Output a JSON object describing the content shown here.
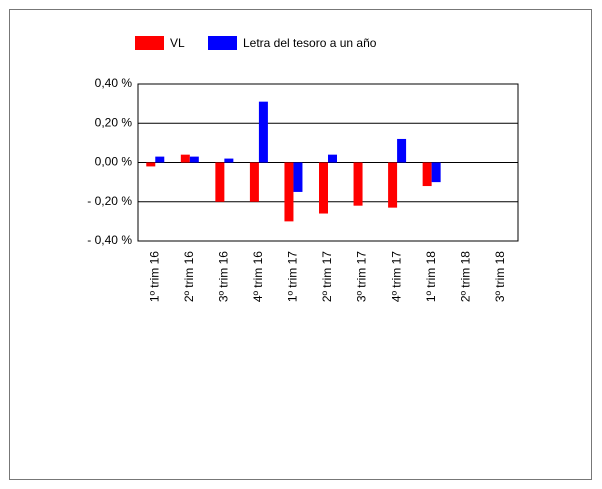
{
  "chart_data": {
    "type": "bar",
    "categories": [
      "1º trim 16",
      "2º trim 16",
      "3º trim 16",
      "4º trim 16",
      "1º trim 17",
      "2º trim 17",
      "3º trim 17",
      "4º trim 17",
      "1º trim 18",
      "2º trim 18",
      "3º trim 18"
    ],
    "series": [
      {
        "name": "VL",
        "color": "#ff0000",
        "values": [
          -0.02,
          0.04,
          -0.2,
          -0.2,
          -0.3,
          -0.26,
          -0.22,
          -0.23,
          -0.12,
          null,
          null
        ]
      },
      {
        "name": "Letra del tesoro a un año",
        "color": "#0000ff",
        "values": [
          0.03,
          0.03,
          0.02,
          0.31,
          -0.15,
          0.04,
          null,
          0.12,
          -0.1,
          null,
          null
        ]
      }
    ],
    "ylim": [
      -0.4,
      0.4
    ],
    "yticks": [
      {
        "value": 0.4,
        "label": "0,40 %"
      },
      {
        "value": 0.2,
        "label": "0,20 %"
      },
      {
        "value": 0,
        "label": "0,00 %"
      },
      {
        "value": -0.2,
        "label": "- 0,20 %"
      },
      {
        "value": -0.4,
        "label": "- 0,40 %"
      }
    ],
    "grid": true
  }
}
